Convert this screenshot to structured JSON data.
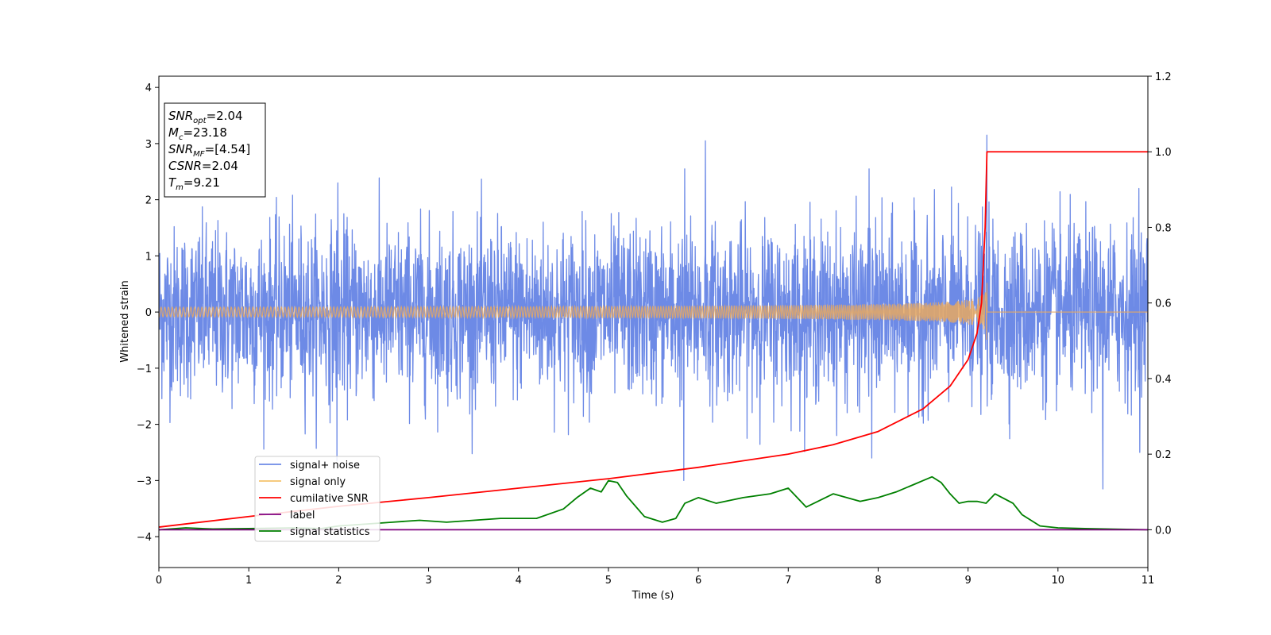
{
  "chart_data": {
    "type": "line",
    "xlabel": "Time (s)",
    "ylabel": "Whitened strain",
    "xlim": [
      0,
      11
    ],
    "ylim_left": [
      -4.55,
      4.2
    ],
    "ylim_right": [
      -0.1,
      1.2
    ],
    "x_ticks": [
      "0",
      "1",
      "2",
      "3",
      "4",
      "5",
      "6",
      "7",
      "8",
      "9",
      "10",
      "11"
    ],
    "y_ticks_left": [
      "−4",
      "−3",
      "−2",
      "−1",
      "0",
      "1",
      "2",
      "3",
      "4"
    ],
    "y_ticks_right": [
      "0.0",
      "0.2",
      "0.4",
      "0.6",
      "0.8",
      "1.0",
      "1.2"
    ],
    "legend_position": "lower-left",
    "annotation_box": {
      "position": "top-left",
      "lines": [
        {
          "name": "SNR",
          "sub": "opt",
          "value": "=2.04"
        },
        {
          "name": "M",
          "sub": "c",
          "value": "=23.18"
        },
        {
          "name": "SNR",
          "sub": "MF",
          "value": "=[4.54]"
        },
        {
          "name": "CSNR",
          "sub": "",
          "value": "=2.04"
        },
        {
          "name": "T",
          "sub": "m",
          "value": "=9.21"
        }
      ]
    },
    "series": [
      {
        "name": "signal+ noise",
        "axis": "left",
        "color": "#6d8ae6",
        "description": "whitened noise, roughly Gaussian with std ~0.75, peaks up to about ±3.1",
        "amplitude_std": 0.75,
        "extremes": [
          {
            "x": 9.21,
            "y": 3.15
          },
          {
            "x": 6.08,
            "y": 3.05
          },
          {
            "x": 5.84,
            "y": -3.0
          },
          {
            "x": 10.5,
            "y": -3.15
          },
          {
            "x": 1.98,
            "y": -2.65
          },
          {
            "x": 5.85,
            "y": 2.55
          },
          {
            "x": 7.9,
            "y": 2.55
          },
          {
            "x": 7.93,
            "y": -2.6
          },
          {
            "x": 1.99,
            "y": 2.3
          },
          {
            "x": 10.9,
            "y": 2.2
          },
          {
            "x": 10.91,
            "y": -2.5
          }
        ]
      },
      {
        "name": "signal only",
        "axis": "left",
        "color": "#f5c26b",
        "description": "chirp signal growing in amplitude up to merger at T=9.21, then zero",
        "merger_time": 9.21,
        "peak_amplitude": 0.6
      },
      {
        "name": "cumilative SNR",
        "axis": "right",
        "color": "#ff0000",
        "x": [
          0,
          1,
          2,
          3,
          4,
          5,
          6,
          7,
          7.5,
          8,
          8.5,
          8.8,
          9.0,
          9.1,
          9.15,
          9.19,
          9.21,
          11
        ],
        "y": [
          0.007,
          0.035,
          0.062,
          0.085,
          0.11,
          0.135,
          0.165,
          0.2,
          0.225,
          0.26,
          0.32,
          0.38,
          0.45,
          0.52,
          0.6,
          0.8,
          1.0,
          1.0
        ]
      },
      {
        "name": "label",
        "axis": "right",
        "color": "#800080",
        "x": [
          0,
          11
        ],
        "y": [
          0.0,
          0.0
        ]
      },
      {
        "name": "signal statistics",
        "axis": "right",
        "color": "#008000",
        "x": [
          0,
          0.3,
          0.6,
          1.0,
          1.5,
          1.8,
          2.0,
          2.3,
          2.6,
          2.9,
          3.2,
          3.5,
          3.8,
          4.2,
          4.5,
          4.65,
          4.8,
          4.92,
          5.0,
          5.1,
          5.2,
          5.4,
          5.6,
          5.75,
          5.85,
          6.0,
          6.2,
          6.5,
          6.8,
          7.0,
          7.2,
          7.5,
          7.8,
          8.0,
          8.2,
          8.4,
          8.5,
          8.6,
          8.7,
          8.8,
          8.9,
          9.0,
          9.1,
          9.2,
          9.3,
          9.5,
          9.6,
          9.8,
          10.0,
          10.3,
          11
        ],
        "y": [
          0.0,
          0.005,
          0.002,
          0.003,
          0.005,
          0.003,
          0.01,
          0.015,
          0.02,
          0.025,
          0.02,
          0.025,
          0.03,
          0.03,
          0.055,
          0.085,
          0.11,
          0.1,
          0.13,
          0.125,
          0.09,
          0.035,
          0.02,
          0.03,
          0.07,
          0.085,
          0.07,
          0.085,
          0.095,
          0.11,
          0.06,
          0.095,
          0.075,
          0.085,
          0.1,
          0.12,
          0.13,
          0.14,
          0.125,
          0.095,
          0.07,
          0.075,
          0.075,
          0.07,
          0.095,
          0.07,
          0.04,
          0.01,
          0.005,
          0.003,
          0.0
        ]
      }
    ]
  }
}
